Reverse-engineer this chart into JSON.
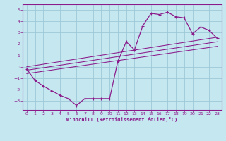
{
  "xlabel": "Windchill (Refroidissement éolien,°C)",
  "background_color": "#c5e8f0",
  "grid_color": "#9dc8d8",
  "line_color": "#8b1a8b",
  "xlim": [
    -0.5,
    23.5
  ],
  "ylim": [
    -3.8,
    5.5
  ],
  "xticks": [
    0,
    1,
    2,
    3,
    4,
    5,
    6,
    7,
    8,
    9,
    10,
    11,
    12,
    13,
    14,
    15,
    16,
    17,
    18,
    19,
    20,
    21,
    22,
    23
  ],
  "yticks": [
    -3,
    -2,
    -1,
    0,
    1,
    2,
    3,
    4,
    5
  ],
  "curve1_x": [
    0,
    1,
    2,
    3,
    4,
    5,
    6,
    7,
    8,
    9,
    10,
    11,
    12,
    13,
    14,
    15,
    16,
    17,
    18,
    19,
    20,
    21,
    22,
    23
  ],
  "curve1_y": [
    -0.2,
    -1.2,
    -1.7,
    -2.1,
    -2.5,
    -2.8,
    -3.4,
    -2.8,
    -2.8,
    -2.8,
    -2.8,
    0.5,
    2.2,
    1.5,
    3.6,
    4.7,
    4.6,
    4.8,
    4.4,
    4.3,
    2.9,
    3.5,
    3.2,
    2.5
  ],
  "line1_x": [
    0,
    23
  ],
  "line1_y": [
    -0.6,
    1.8
  ],
  "line2_x": [
    0,
    23
  ],
  "line2_y": [
    -0.3,
    2.2
  ],
  "line3_x": [
    0,
    23
  ],
  "line3_y": [
    0.0,
    2.6
  ]
}
